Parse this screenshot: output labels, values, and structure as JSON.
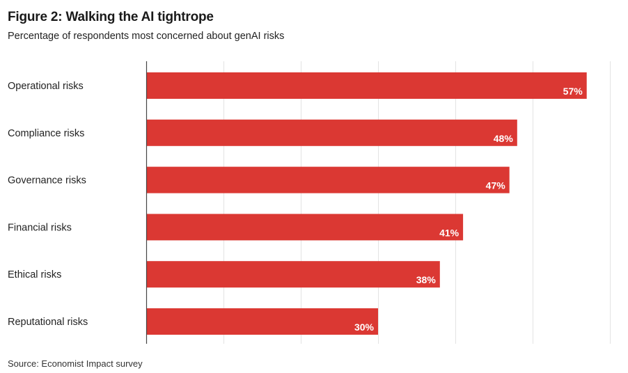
{
  "figure": {
    "title": "Figure 2: Walking the AI tightrope",
    "subtitle": "Percentage of respondents most concerned about genAI risks",
    "source": "Source: Economist Impact survey"
  },
  "chart_data": {
    "type": "bar",
    "orientation": "horizontal",
    "title": "Figure 2: Walking the AI tightrope",
    "subtitle": "Percentage of respondents most concerned about genAI risks",
    "categories": [
      "Operational risks",
      "Compliance risks",
      "Governance risks",
      "Financial risks",
      "Ethical risks",
      "Reputational risks"
    ],
    "values": [
      57,
      48,
      47,
      41,
      38,
      30
    ],
    "data_labels": [
      "57%",
      "48%",
      "47%",
      "41%",
      "38%",
      "30%"
    ],
    "unit": "%",
    "xlim": [
      0,
      60
    ],
    "grid": true,
    "gridlines_at": [
      10,
      20,
      30,
      40,
      50,
      60
    ],
    "bar_color": "#db3833",
    "label_color": "#ffffff",
    "grid_color": "#e3e3e3",
    "axis_color": "#444444"
  }
}
